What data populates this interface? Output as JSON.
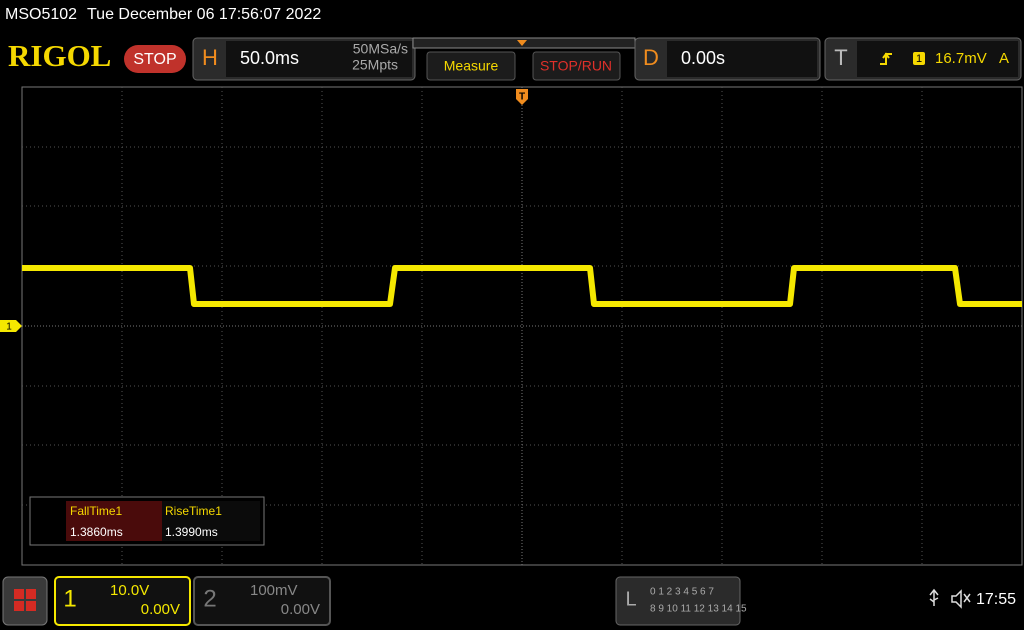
{
  "header": {
    "model": "MSO5102",
    "datetime": "Tue December 06 17:56:07 2022"
  },
  "toolbar": {
    "logo": "RIGOL",
    "status": "STOP",
    "horizontal": {
      "label": "H",
      "timebase": "50.0ms",
      "sample_rate": "50MSa/s",
      "memory_depth": "25Mpts"
    },
    "buttons": [
      "Measure",
      "STOP/RUN"
    ],
    "delay": {
      "label": "D",
      "value": "0.00s"
    },
    "trigger": {
      "label": "T",
      "source": "1",
      "level": "16.7mV",
      "mode": "A"
    }
  },
  "markers": {
    "trigger_position": "T",
    "channel": "1"
  },
  "measurements": {
    "headers": [
      "FallTime1",
      "RiseTime1"
    ],
    "values": [
      "1.3860ms",
      "1.3990ms"
    ]
  },
  "footer": {
    "channel1": {
      "number": "1",
      "scale": "10.0V",
      "offset": "0.00V"
    },
    "channel2": {
      "number": "2",
      "scale": "100mV",
      "offset": "0.00V"
    },
    "logic": {
      "label": "L",
      "row1": "0 1 2 3  4 5 6 7",
      "row2": "8 9 10 11 12 13 14 15"
    },
    "clock": "17:55"
  }
}
